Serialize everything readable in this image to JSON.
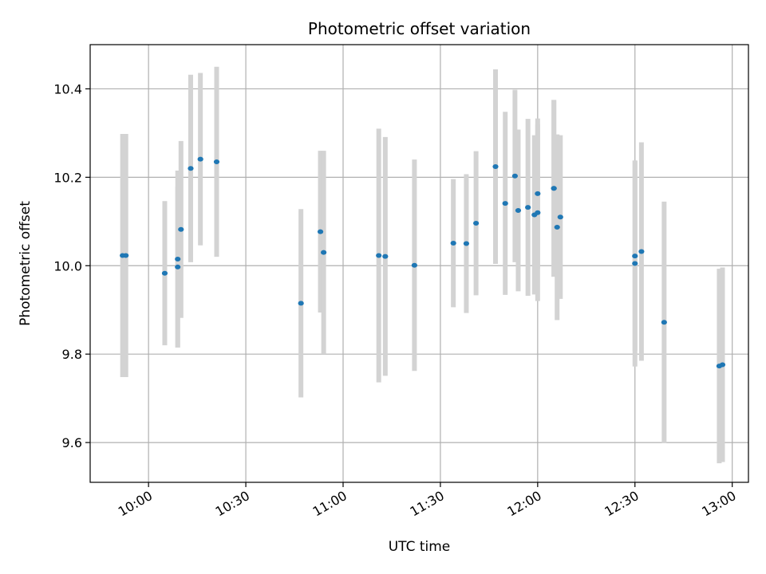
{
  "chart_data": {
    "type": "scatter",
    "title": "Photometric offset variation",
    "xlabel": "UTC time",
    "ylabel": "Photometric offset",
    "x_unit": "time",
    "xlim": [
      "09:42",
      "13:05"
    ],
    "ylim": [
      9.51,
      10.5
    ],
    "xticks": [
      "10:00",
      "10:30",
      "11:00",
      "11:30",
      "12:00",
      "12:30",
      "13:00"
    ],
    "yticks": [
      9.6,
      9.8,
      10.0,
      10.2,
      10.4
    ],
    "grid": true,
    "colors": {
      "point": "#1f77b4",
      "errorbar": "#d3d3d3",
      "grid": "#b0b0b0"
    },
    "points": [
      {
        "x": "09:52",
        "y": 10.023,
        "err": 0.275
      },
      {
        "x": "09:53",
        "y": 10.023,
        "err": 0.275
      },
      {
        "x": "10:05",
        "y": 9.983,
        "err": 0.163
      },
      {
        "x": "10:09",
        "y": 10.015,
        "err": 0.2
      },
      {
        "x": "10:09",
        "y": 9.997,
        "err": 0.182
      },
      {
        "x": "10:10",
        "y": 10.082,
        "err": 0.2
      },
      {
        "x": "10:13",
        "y": 10.22,
        "err": 0.212
      },
      {
        "x": "10:16",
        "y": 10.241,
        "err": 0.195
      },
      {
        "x": "10:21",
        "y": 10.235,
        "err": 0.215
      },
      {
        "x": "10:47",
        "y": 9.915,
        "err": 0.213
      },
      {
        "x": "10:53",
        "y": 10.077,
        "err": 0.183
      },
      {
        "x": "10:54",
        "y": 10.03,
        "err": 0.23
      },
      {
        "x": "11:11",
        "y": 10.023,
        "err": 0.287
      },
      {
        "x": "11:13",
        "y": 10.021,
        "err": 0.27
      },
      {
        "x": "11:22",
        "y": 10.001,
        "err": 0.239
      },
      {
        "x": "11:34",
        "y": 10.051,
        "err": 0.145
      },
      {
        "x": "11:38",
        "y": 10.05,
        "err": 0.157
      },
      {
        "x": "11:41",
        "y": 10.096,
        "err": 0.163
      },
      {
        "x": "11:47",
        "y": 10.224,
        "err": 0.22
      },
      {
        "x": "11:50",
        "y": 10.141,
        "err": 0.207
      },
      {
        "x": "11:53",
        "y": 10.203,
        "err": 0.195
      },
      {
        "x": "11:54",
        "y": 10.125,
        "err": 0.183
      },
      {
        "x": "11:57",
        "y": 10.132,
        "err": 0.2
      },
      {
        "x": "11:59",
        "y": 10.115,
        "err": 0.18
      },
      {
        "x": "12:00",
        "y": 10.12,
        "err": 0.2
      },
      {
        "x": "12:00",
        "y": 10.163,
        "err": 0.17
      },
      {
        "x": "12:05",
        "y": 10.175,
        "err": 0.2
      },
      {
        "x": "12:05",
        "y": 10.175,
        "err": 0.2
      },
      {
        "x": "12:06",
        "y": 10.087,
        "err": 0.21
      },
      {
        "x": "12:07",
        "y": 10.11,
        "err": 0.185
      },
      {
        "x": "12:30",
        "y": 10.005,
        "err": 0.233
      },
      {
        "x": "12:30",
        "y": 10.022,
        "err": 0.215
      },
      {
        "x": "12:32",
        "y": 10.032,
        "err": 0.247
      },
      {
        "x": "12:39",
        "y": 9.872,
        "err": 0.273
      },
      {
        "x": "12:56",
        "y": 9.773,
        "err": 0.22
      },
      {
        "x": "12:57",
        "y": 9.776,
        "err": 0.22
      }
    ]
  }
}
